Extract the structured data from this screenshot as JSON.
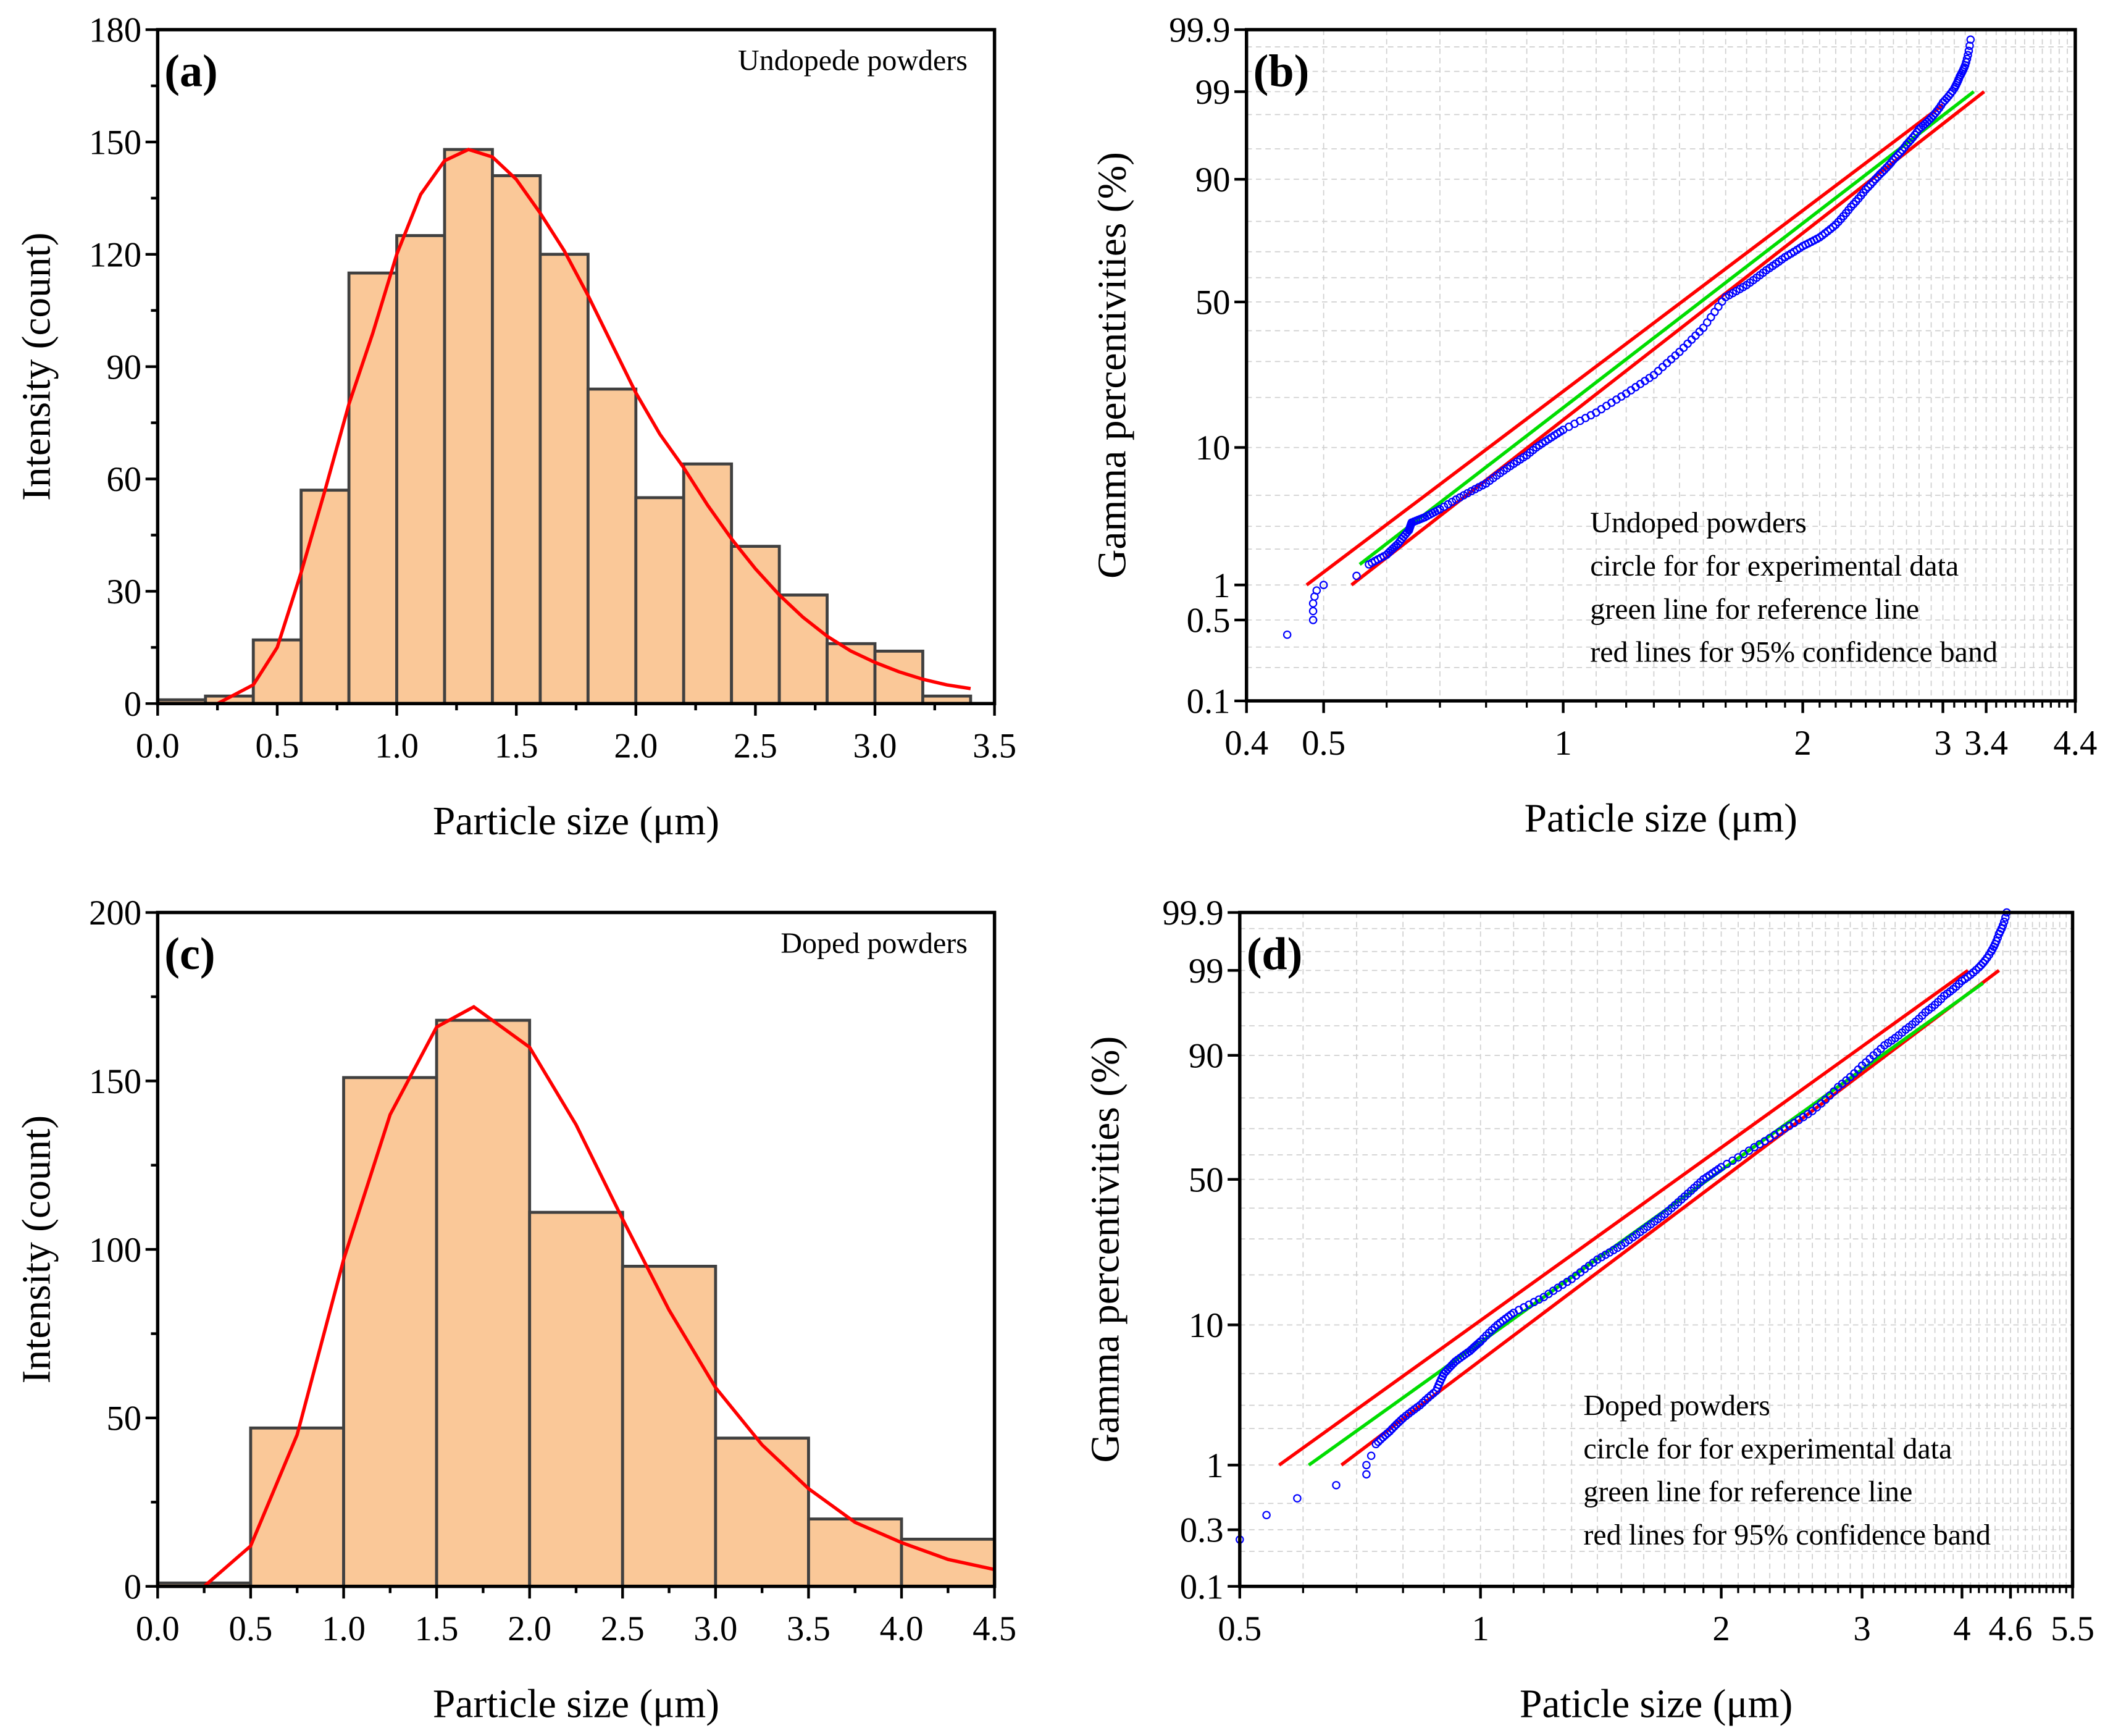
{
  "colors": {
    "bar_fill": "#FAC898",
    "bar_edge": "#404040",
    "fit": "#FF0000",
    "points": "#0000FF",
    "reference": "#00DD00",
    "band": "#FF0000",
    "grid": "#D0D0D0"
  },
  "chart_data": [
    {
      "id": "a",
      "type": "bar",
      "panel_label": "(a)",
      "annotation": "Undopede powders",
      "xlabel": "Particle size (μm)",
      "ylabel": "Intensity (count)",
      "xlim": [
        0,
        3.5
      ],
      "ylim": [
        0,
        180
      ],
      "xticks": [
        "0.0",
        "0.5",
        "1.0",
        "1.5",
        "2.0",
        "2.5",
        "3.0",
        "3.5"
      ],
      "yticks": [
        "0",
        "30",
        "60",
        "90",
        "120",
        "150",
        "180"
      ],
      "bin_width": 0.2,
      "bin_starts": [
        0,
        0.2,
        0.4,
        0.6,
        0.8,
        1.0,
        1.2,
        1.4,
        1.6,
        1.8,
        2.0,
        2.2,
        2.4,
        2.6,
        2.8,
        3.0,
        3.2
      ],
      "values": [
        1,
        2,
        17,
        57,
        115,
        125,
        148,
        141,
        120,
        84,
        55,
        64,
        42,
        29,
        16,
        14,
        2
      ],
      "fit_curve": [
        [
          0.25,
          0
        ],
        [
          0.4,
          5
        ],
        [
          0.5,
          15
        ],
        [
          0.6,
          35
        ],
        [
          0.7,
          57
        ],
        [
          0.8,
          80
        ],
        [
          0.9,
          99
        ],
        [
          1.0,
          120
        ],
        [
          1.1,
          136
        ],
        [
          1.2,
          145
        ],
        [
          1.3,
          148
        ],
        [
          1.4,
          146
        ],
        [
          1.5,
          140
        ],
        [
          1.6,
          131
        ],
        [
          1.7,
          121
        ],
        [
          1.8,
          109
        ],
        [
          1.9,
          96
        ],
        [
          2.0,
          83
        ],
        [
          2.1,
          72
        ],
        [
          2.2,
          63
        ],
        [
          2.3,
          53
        ],
        [
          2.4,
          44
        ],
        [
          2.5,
          36
        ],
        [
          2.6,
          29
        ],
        [
          2.7,
          23
        ],
        [
          2.8,
          18
        ],
        [
          2.9,
          14
        ],
        [
          3.0,
          11
        ],
        [
          3.1,
          8.5
        ],
        [
          3.2,
          6.5
        ],
        [
          3.3,
          5
        ],
        [
          3.4,
          4
        ]
      ]
    },
    {
      "id": "b",
      "type": "scatter",
      "panel_label": "(b)",
      "xlabel": "Paticle size (μm)",
      "ylabel": "Gamma percentivities (%)",
      "xscale": "log",
      "xlim": [
        0.4,
        4.4
      ],
      "ylim": [
        0.1,
        99.9
      ],
      "xticks": [
        "0.4",
        "0.5",
        "1",
        "2",
        "3",
        "3.4",
        "4.4"
      ],
      "yticks": [
        "0.1",
        "0.5",
        "1",
        "10",
        "50",
        "90",
        "99",
        "99.9"
      ],
      "legend_text": [
        "Undoped powders",
        "circle for for experimental data",
        "green line for reference line",
        "red lines for 95% confidence band"
      ],
      "points": [
        [
          0.45,
          0.38
        ],
        [
          0.485,
          0.5
        ],
        [
          0.485,
          0.6
        ],
        [
          0.485,
          0.7
        ],
        [
          0.487,
          0.8
        ],
        [
          0.49,
          0.9
        ],
        [
          0.5,
          1.0
        ],
        [
          0.55,
          1.2
        ],
        [
          0.57,
          1.5
        ],
        [
          0.6,
          1.8
        ],
        [
          0.62,
          2.2
        ],
        [
          0.64,
          2.8
        ],
        [
          0.645,
          3.2
        ],
        [
          0.67,
          3.5
        ],
        [
          0.7,
          4
        ],
        [
          0.75,
          5
        ],
        [
          0.8,
          6
        ],
        [
          0.85,
          7.5
        ],
        [
          0.9,
          9
        ],
        [
          0.95,
          11
        ],
        [
          1.0,
          13
        ],
        [
          1.1,
          16.5
        ],
        [
          1.2,
          21
        ],
        [
          1.3,
          26
        ],
        [
          1.4,
          33
        ],
        [
          1.5,
          41
        ],
        [
          1.6,
          52
        ],
        [
          1.7,
          57
        ],
        [
          1.8,
          63
        ],
        [
          1.9,
          68
        ],
        [
          2.0,
          72
        ],
        [
          2.1,
          75
        ],
        [
          2.2,
          79
        ],
        [
          2.3,
          84
        ],
        [
          2.4,
          88
        ],
        [
          2.5,
          91
        ],
        [
          2.6,
          93.5
        ],
        [
          2.7,
          95.5
        ],
        [
          2.8,
          97
        ],
        [
          2.9,
          97.8
        ],
        [
          3.0,
          98.6
        ],
        [
          3.1,
          99.1
        ],
        [
          3.15,
          99.4
        ],
        [
          3.2,
          99.6
        ],
        [
          3.25,
          99.85
        ]
      ],
      "reference_line": [
        [
          0.555,
          1.5
        ],
        [
          3.28,
          99
        ]
      ],
      "confidence_band": [
        [
          [
            0.476,
            1
          ],
          [
            3.0,
            98.5
          ]
        ],
        [
          [
            0.542,
            1
          ],
          [
            3.38,
            99
          ]
        ]
      ]
    },
    {
      "id": "c",
      "type": "bar",
      "panel_label": "(c)",
      "annotation": "Doped powders",
      "xlabel": "Particle size (μm)",
      "ylabel": "Intensity (count)",
      "xlim": [
        0,
        4.5
      ],
      "ylim": [
        0,
        200
      ],
      "xticks": [
        "0.0",
        "0.5",
        "1.0",
        "1.5",
        "2.0",
        "2.5",
        "3.0",
        "3.5",
        "4.0",
        "4.5"
      ],
      "yticks": [
        "0",
        "50",
        "100",
        "150",
        "200"
      ],
      "bin_width": 0.5,
      "bin_starts": [
        0,
        0.5,
        1.0,
        1.5,
        2.0,
        2.5,
        3.0,
        3.5,
        4.0
      ],
      "values": [
        1,
        47,
        151,
        168,
        111,
        95,
        44,
        20,
        14
      ],
      "fit_curve": [
        [
          0.25,
          0
        ],
        [
          0.5,
          12
        ],
        [
          0.75,
          45
        ],
        [
          1.0,
          97
        ],
        [
          1.25,
          140
        ],
        [
          1.5,
          166
        ],
        [
          1.7,
          172
        ],
        [
          2.0,
          160
        ],
        [
          2.25,
          137
        ],
        [
          2.5,
          109
        ],
        [
          2.75,
          82
        ],
        [
          3.0,
          59
        ],
        [
          3.25,
          42
        ],
        [
          3.5,
          29
        ],
        [
          3.75,
          19
        ],
        [
          4.0,
          13
        ],
        [
          4.25,
          8
        ],
        [
          4.5,
          5
        ]
      ]
    },
    {
      "id": "d",
      "type": "scatter",
      "panel_label": "(d)",
      "xlabel": "Paticle size (μm)",
      "ylabel": "Gamma percentivities (%)",
      "xscale": "log",
      "xlim": [
        0.5,
        5.5
      ],
      "ylim": [
        0.1,
        99.9
      ],
      "xticks": [
        "0.5",
        "1",
        "2",
        "3",
        "4",
        "4.6",
        "5.5"
      ],
      "yticks": [
        "0.1",
        "0.3",
        "1",
        "10",
        "50",
        "90",
        "99",
        "99.9"
      ],
      "legend_text": [
        "Doped powders",
        "circle for for experimental data",
        "green line for reference line",
        "red lines for 95% confidence band"
      ],
      "points": [
        [
          0.5,
          0.25
        ],
        [
          0.54,
          0.4
        ],
        [
          0.59,
          0.55
        ],
        [
          0.66,
          0.7
        ],
        [
          0.72,
          0.85
        ],
        [
          0.72,
          1.0
        ],
        [
          0.73,
          1.2
        ],
        [
          0.74,
          1.5
        ],
        [
          0.77,
          1.9
        ],
        [
          0.8,
          2.4
        ],
        [
          0.84,
          3
        ],
        [
          0.88,
          3.8
        ],
        [
          0.9,
          5
        ],
        [
          0.93,
          6
        ],
        [
          0.97,
          7
        ],
        [
          1.0,
          8
        ],
        [
          1.05,
          10
        ],
        [
          1.1,
          12
        ],
        [
          1.2,
          15
        ],
        [
          1.3,
          19
        ],
        [
          1.4,
          24
        ],
        [
          1.5,
          28
        ],
        [
          1.6,
          33
        ],
        [
          1.7,
          38
        ],
        [
          1.8,
          44
        ],
        [
          1.9,
          50
        ],
        [
          2.0,
          55
        ],
        [
          2.2,
          63
        ],
        [
          2.4,
          70
        ],
        [
          2.6,
          76
        ],
        [
          2.8,
          83
        ],
        [
          3.0,
          88
        ],
        [
          3.2,
          92
        ],
        [
          3.4,
          94.5
        ],
        [
          3.6,
          96.5
        ],
        [
          3.8,
          97.8
        ],
        [
          4.0,
          98.6
        ],
        [
          4.2,
          99.1
        ],
        [
          4.35,
          99.5
        ],
        [
          4.45,
          99.75
        ],
        [
          4.55,
          99.9
        ]
      ],
      "reference_line": [
        [
          0.61,
          1
        ],
        [
          4.25,
          98.5
        ]
      ],
      "confidence_band": [
        [
          [
            0.56,
            1
          ],
          [
            4.07,
            99
          ]
        ],
        [
          [
            0.67,
            1
          ],
          [
            4.45,
            99
          ]
        ]
      ]
    }
  ]
}
